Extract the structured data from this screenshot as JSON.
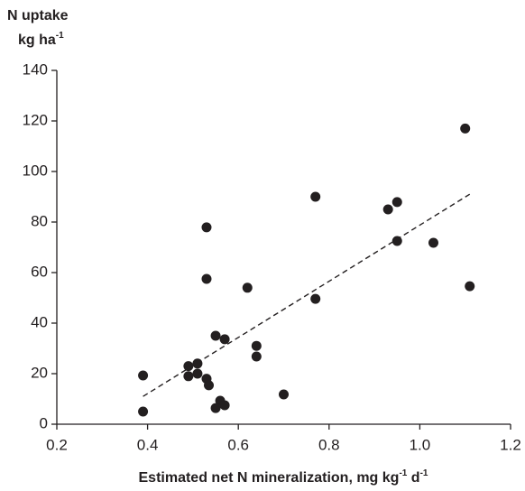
{
  "chart_data": {
    "type": "scatter",
    "ylabel": {
      "line1": "N uptake",
      "line2": [
        {
          "text": "kg ha"
        },
        {
          "text": "-1",
          "sup": true
        }
      ]
    },
    "xlabel": [
      {
        "text": "Estimated net N mineralization, mg kg"
      },
      {
        "text": "-1",
        "sup": true
      },
      {
        "text": " d"
      },
      {
        "text": "-1",
        "sup": true
      }
    ],
    "xlim": [
      0.2,
      1.2
    ],
    "ylim": [
      0,
      140
    ],
    "xticks": [
      0.2,
      0.4,
      0.6,
      0.8,
      {
        "value": 1,
        "label": "1.0"
      },
      1.2
    ],
    "yticks": [
      0,
      20,
      40,
      60,
      80,
      100,
      120,
      140
    ],
    "color": "#231f20",
    "x": [
      1.1,
      1.11,
      1.03,
      0.95,
      0.93,
      0.95,
      0.77,
      0.77,
      0.62,
      0.53,
      0.53,
      0.55,
      0.57,
      0.64,
      0.64,
      0.7,
      0.39,
      0.39,
      0.49,
      0.51,
      0.49,
      0.51,
      0.53,
      0.535,
      0.56,
      0.57,
      0.55
    ],
    "y": [
      117,
      54.6,
      71.8,
      87.9,
      85,
      72.5,
      90,
      49.6,
      54,
      77.9,
      57.5,
      35,
      33.6,
      31,
      26.8,
      11.8,
      19.3,
      5,
      23,
      24,
      19,
      20,
      18,
      15.4,
      9.3,
      7.5,
      6.4
    ],
    "trendline": {
      "x": [
        0.39,
        1.11
      ],
      "y": [
        11,
        91
      ]
    }
  }
}
